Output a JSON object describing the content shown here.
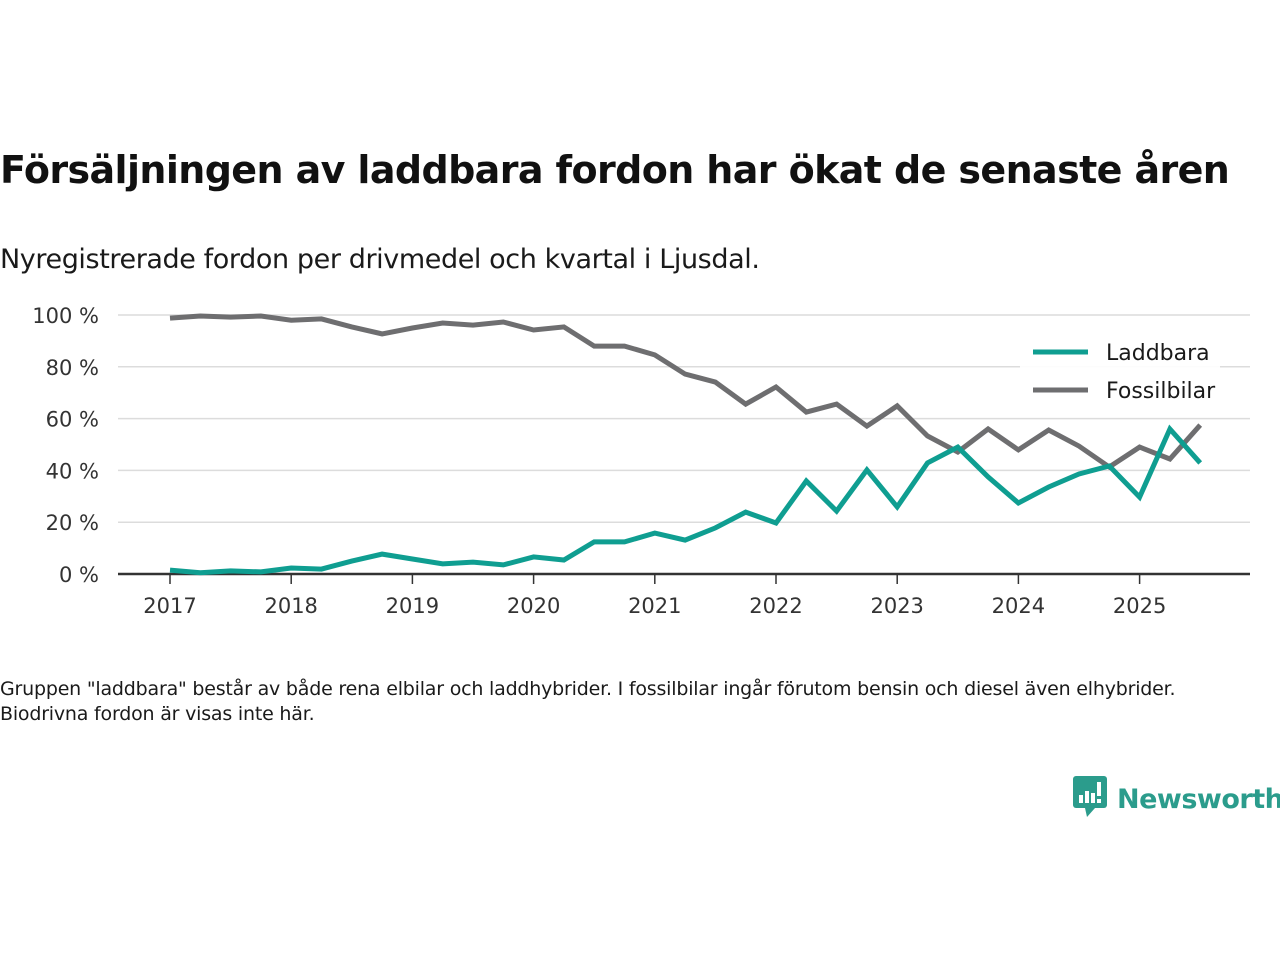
{
  "header": {
    "title": "Försäljningen av laddbara fordon har ökat de senaste åren",
    "subtitle": "Nyregistrerade fordon per drivmedel och kvartal i Ljusdal."
  },
  "footer": {
    "note": "Gruppen \"laddbara\" består av både rena elbilar och laddhybrider. I fossilbilar ingår förutom bensin och diesel även elhybrider. Biodrivna fordon är visas inte här.",
    "brand": "Newsworthy",
    "brand_icon": "newsworthy-logo-icon",
    "brand_color": "#2b9c8c"
  },
  "chart_data": {
    "type": "line",
    "title": "Försäljningen av laddbara fordon har ökat de senaste åren",
    "subtitle": "Nyregistrerade fordon per drivmedel och kvartal i Ljusdal.",
    "xlabel": "",
    "ylabel": "",
    "x": [
      "2017 Q1",
      "2017 Q2",
      "2017 Q3",
      "2017 Q4",
      "2018 Q1",
      "2018 Q2",
      "2018 Q3",
      "2018 Q4",
      "2019 Q1",
      "2019 Q2",
      "2019 Q3",
      "2019 Q4",
      "2020 Q1",
      "2020 Q2",
      "2020 Q3",
      "2020 Q4",
      "2021 Q1",
      "2021 Q2",
      "2021 Q3",
      "2021 Q4",
      "2022 Q1",
      "2022 Q2",
      "2022 Q3",
      "2022 Q4",
      "2023 Q1",
      "2023 Q2",
      "2023 Q3",
      "2023 Q4",
      "2024 Q1",
      "2024 Q2",
      "2024 Q3",
      "2024 Q4",
      "2025 Q1",
      "2025 Q2",
      "2025 Q3"
    ],
    "x_ticks": [
      "2017",
      "2018",
      "2019",
      "2020",
      "2021",
      "2022",
      "2023",
      "2024",
      "2025"
    ],
    "y_ticks": [
      0,
      20,
      40,
      60,
      80,
      100
    ],
    "y_tick_labels": [
      "0 %",
      "20 %",
      "40 %",
      "60 %",
      "80 %",
      "100 %"
    ],
    "ylim": [
      0,
      100
    ],
    "grid": true,
    "legend_position": "top-right",
    "series": [
      {
        "name": "Laddbara",
        "color": "#0f9e91",
        "values": [
          1.5,
          0.5,
          1.2,
          0.8,
          2.3,
          1.9,
          5.0,
          7.7,
          5.8,
          3.9,
          4.6,
          3.5,
          6.6,
          5.4,
          12.4,
          12.4,
          15.8,
          13.1,
          17.8,
          23.9,
          19.7,
          35.9,
          24.3,
          40.2,
          25.9,
          42.9,
          49.0,
          37.5,
          27.4,
          33.6,
          38.6,
          41.7,
          29.7,
          56.0,
          42.9
        ]
      },
      {
        "name": "Fossilbilar",
        "color": "#6e6e70",
        "values": [
          98.8,
          99.6,
          99.2,
          99.6,
          98.0,
          98.5,
          95.4,
          92.7,
          95.0,
          96.9,
          96.1,
          97.3,
          94.2,
          95.4,
          88.0,
          88.0,
          84.6,
          77.2,
          74.1,
          65.6,
          72.2,
          62.5,
          65.6,
          57.1,
          64.9,
          53.3,
          47.1,
          56.0,
          47.9,
          55.6,
          49.4,
          41.3,
          49.0,
          44.4,
          57.5
        ]
      }
    ]
  }
}
